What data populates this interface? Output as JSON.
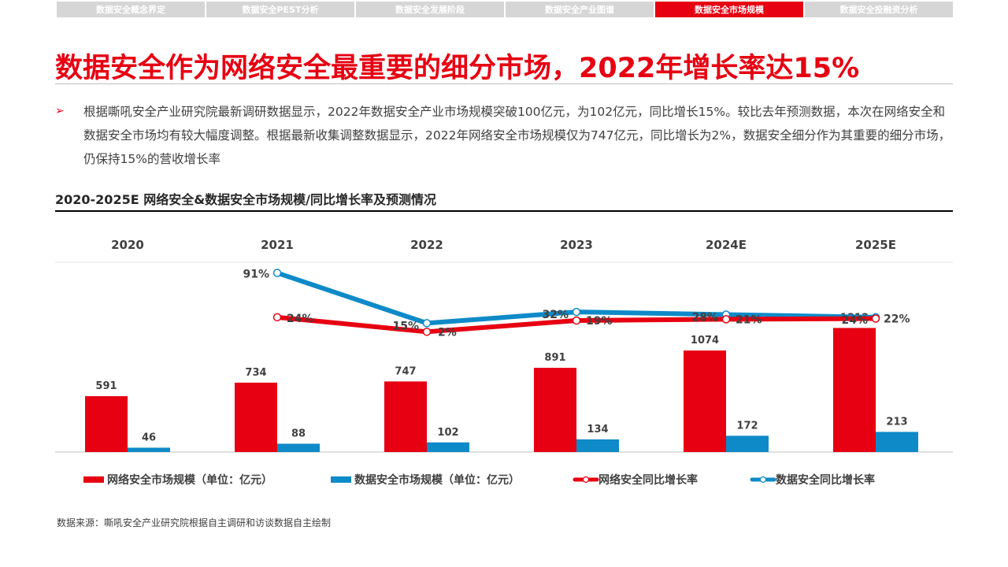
{
  "nav": {
    "tabs": [
      "数据安全概念界定",
      "数据安全PEST分析",
      "数据安全发展阶段",
      "数据安全产业图谱",
      "数据安全市场规模",
      "数据安全投融资分析"
    ],
    "active_index": 4
  },
  "page": {
    "title": "数据安全作为网络安全最重要的细分市场，2022年增长率达15%",
    "bullet": "根据嘶吼安全产业研究院最新调研数据显示，2022年数据安全产业市场规模突破100亿元，为102亿元，同比增长15%。较比去年预测数据，本次在网络安全和数据安全市场均有较大幅度调整。根据最新收集调整数据显示，2022年网络安全市场规模仅为747亿元，同比增长为2%，数据安全细分作为其重要的细分市场，仍保持15%的营收增长率",
    "chart_title": "2020-2025E 网络安全&数据安全市场规模/同比增长率及预测情况",
    "source": "数据来源：嘶吼安全产业研究院根据自主调研和访谈数据自主绘制"
  },
  "colors": {
    "red": "#e60012",
    "blue": "#0e8ac8",
    "tab_inactive": "#d6d6d6"
  },
  "chart_data": {
    "type": "bar",
    "categories": [
      "2020",
      "2021",
      "2022",
      "2023",
      "2024E",
      "2025E"
    ],
    "series": [
      {
        "name": "网络安全市场规模（单位：亿元）",
        "type": "bar",
        "color": "#e60012",
        "values": [
          591,
          734,
          747,
          891,
          1074,
          1313
        ]
      },
      {
        "name": "数据安全市场规模（单位：亿元）",
        "type": "bar",
        "color": "#0e8ac8",
        "values": [
          46,
          88,
          102,
          134,
          172,
          213
        ]
      },
      {
        "name": "网络安全同比增长率",
        "type": "line",
        "color": "#e60012",
        "values": [
          null,
          24,
          2,
          19,
          21,
          22
        ],
        "labels": [
          "",
          "24%",
          "2%",
          "19%",
          "21%",
          "22%"
        ]
      },
      {
        "name": "数据安全同比增长率",
        "type": "line",
        "color": "#0e8ac8",
        "values": [
          null,
          91,
          15,
          32,
          28,
          24
        ],
        "labels": [
          "",
          "91%",
          "15%",
          "32%",
          "28%",
          "24%"
        ]
      }
    ],
    "grid": false,
    "legend": "bottom"
  }
}
